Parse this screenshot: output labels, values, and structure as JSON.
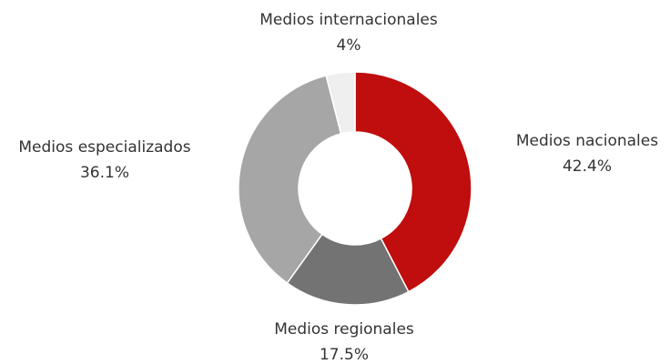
{
  "chart_data": {
    "type": "donut",
    "categories": [
      "Medios nacionales",
      "Medios regionales",
      "Medios especializados",
      "Medios internacionales"
    ],
    "values": [
      42.4,
      17.5,
      36.1,
      4
    ],
    "value_labels": [
      "42.4%",
      "17.5%",
      "36.1%",
      "4%"
    ],
    "colors": [
      "#c00d0d",
      "#737373",
      "#a6a6a6",
      "#efefef"
    ]
  }
}
